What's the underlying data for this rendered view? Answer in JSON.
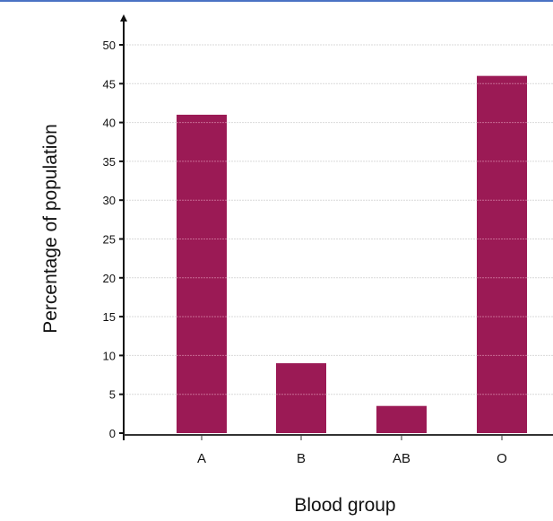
{
  "chart_data": {
    "type": "bar",
    "categories": [
      "A",
      "B",
      "AB",
      "O"
    ],
    "values": [
      41,
      9,
      3.5,
      46
    ],
    "xlabel": "Blood group",
    "ylabel": "Percentage of population",
    "ylim": [
      0,
      50
    ],
    "yticks": [
      0,
      5,
      10,
      15,
      20,
      25,
      30,
      35,
      40,
      45,
      50
    ],
    "grid": true,
    "bar_color": "#9b1a55",
    "gridline_color": "#d9d9d9"
  }
}
